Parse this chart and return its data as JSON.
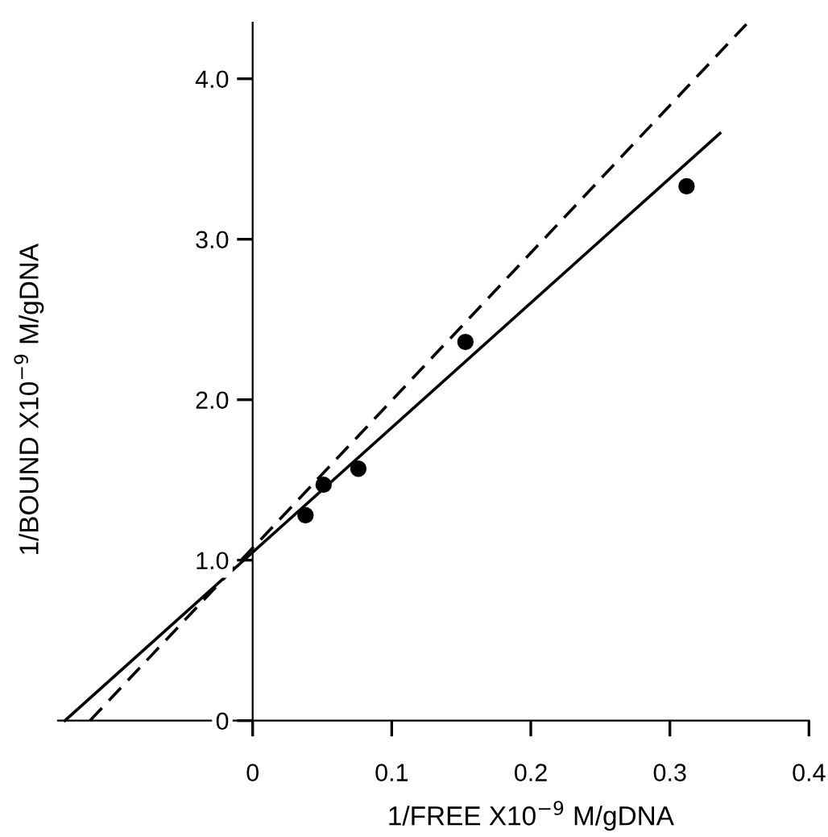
{
  "chart_data": {
    "type": "scatter",
    "xlabel": "1/FREE X10$^{−9}$ M/gDNA",
    "ylabel": "1/BOUND X10$^{−9}$ M/gDNA",
    "xlim": [
      -0.14,
      0.4
    ],
    "ylim": [
      0,
      4.35
    ],
    "xticks": [
      0,
      0.1,
      0.2,
      0.3,
      0.4
    ],
    "yticks": [
      0,
      {
        "value": 1,
        "label": "1.0"
      },
      {
        "value": 2,
        "label": "2.0"
      },
      {
        "value": 3,
        "label": "3.0"
      },
      {
        "value": 4,
        "label": "4.0"
      }
    ],
    "grid": false,
    "legend": false,
    "series": [
      {
        "color": "#000000",
        "marker": "circle",
        "x": [
          0.038,
          0.051,
          0.076,
          0.153,
          0.312
        ],
        "values": [
          1.28,
          1.47,
          1.57,
          2.36,
          3.33
        ]
      },
      {
        "type": "line",
        "color": "#000000",
        "line_style": "solid",
        "marker": "none",
        "x": [
          -0.135,
          0.336
        ],
        "values": [
          0,
          3.66
        ]
      },
      {
        "type": "line",
        "color": "#000000",
        "line_style": "dashed",
        "marker": "none",
        "x": [
          -0.117,
          0.355
        ],
        "values": [
          0,
          4.34
        ]
      }
    ]
  }
}
